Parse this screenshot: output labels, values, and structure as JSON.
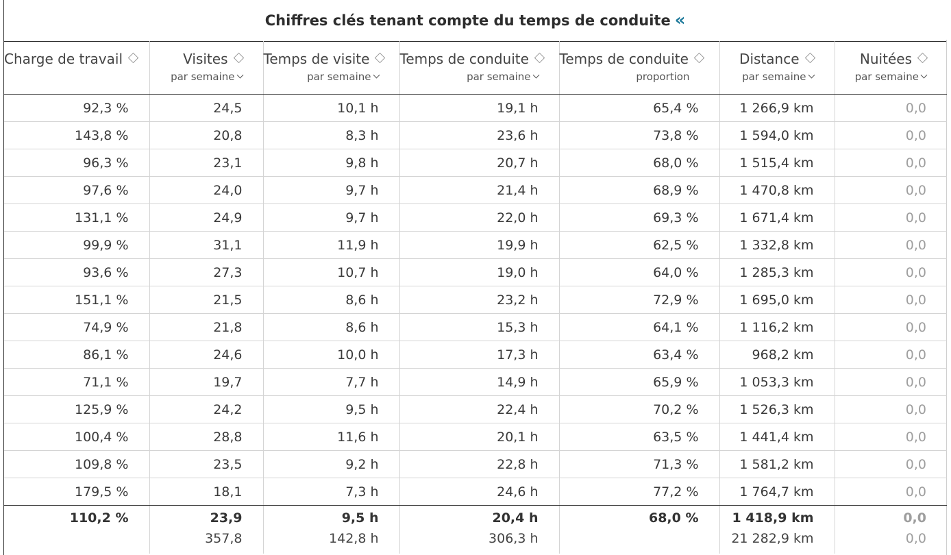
{
  "title": "Chiffres clés tenant compte du temps de conduite",
  "collapse_glyph": "«",
  "columns": [
    {
      "label": "Charge de travail",
      "sub": ""
    },
    {
      "label": "Visites",
      "sub": "par semaine"
    },
    {
      "label": "Temps de visite",
      "sub": "par semaine"
    },
    {
      "label": "Temps de conduite",
      "sub": "par semaine"
    },
    {
      "label": "Temps de conduite",
      "sub": "proportion"
    },
    {
      "label": "Distance",
      "sub": "par semaine"
    },
    {
      "label": "Nuitées",
      "sub": "par semaine"
    }
  ],
  "rows": [
    [
      "92,3 %",
      "24,5",
      "10,1 h",
      "19,1 h",
      "65,4 %",
      "1 266,9 km",
      "0,0"
    ],
    [
      "143,8 %",
      "20,8",
      "8,3 h",
      "23,6 h",
      "73,8 %",
      "1 594,0 km",
      "0,0"
    ],
    [
      "96,3 %",
      "23,1",
      "9,8 h",
      "20,7 h",
      "68,0 %",
      "1 515,4 km",
      "0,0"
    ],
    [
      "97,6 %",
      "24,0",
      "9,7 h",
      "21,4 h",
      "68,9 %",
      "1 470,8 km",
      "0,0"
    ],
    [
      "131,1 %",
      "24,9",
      "9,7 h",
      "22,0 h",
      "69,3 %",
      "1 671,4 km",
      "0,0"
    ],
    [
      "99,9 %",
      "31,1",
      "11,9 h",
      "19,9 h",
      "62,5 %",
      "1 332,8 km",
      "0,0"
    ],
    [
      "93,6 %",
      "27,3",
      "10,7 h",
      "19,0 h",
      "64,0 %",
      "1 285,3 km",
      "0,0"
    ],
    [
      "151,1 %",
      "21,5",
      "8,6 h",
      "23,2 h",
      "72,9 %",
      "1 695,0 km",
      "0,0"
    ],
    [
      "74,9 %",
      "21,8",
      "8,6 h",
      "15,3 h",
      "64,1 %",
      "1 116,2 km",
      "0,0"
    ],
    [
      "86,1 %",
      "24,6",
      "10,0 h",
      "17,3 h",
      "63,4 %",
      "968,2 km",
      "0,0"
    ],
    [
      "71,1 %",
      "19,7",
      "7,7 h",
      "14,9 h",
      "65,9 %",
      "1 053,3 km",
      "0,0"
    ],
    [
      "125,9 %",
      "24,2",
      "9,5 h",
      "22,4 h",
      "70,2 %",
      "1 526,3 km",
      "0,0"
    ],
    [
      "100,4 %",
      "28,8",
      "11,6 h",
      "20,1 h",
      "63,5 %",
      "1 441,4 km",
      "0,0"
    ],
    [
      "109,8 %",
      "23,5",
      "9,2 h",
      "22,8 h",
      "71,3 %",
      "1 581,2 km",
      "0,0"
    ],
    [
      "179,5 %",
      "18,1",
      "7,3 h",
      "24,6 h",
      "77,2 %",
      "1 764,7 km",
      "0,0"
    ]
  ],
  "footer": {
    "averages": [
      "110,2 %",
      "23,9",
      "9,5 h",
      "20,4 h",
      "68,0 %",
      "1 418,9 km",
      "0,0"
    ],
    "totals": [
      "",
      "357,8",
      "142,8 h",
      "306,3 h",
      "",
      "21 282,9 km",
      "0,0"
    ]
  }
}
